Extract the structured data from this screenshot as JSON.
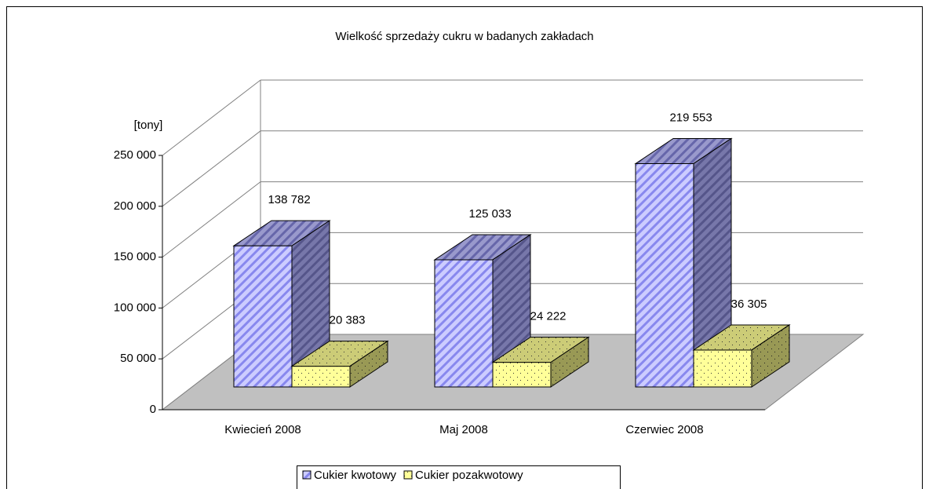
{
  "chart_data": {
    "type": "bar3d",
    "title": "Wielkość sprzedaży cukru w badanych zakładach",
    "y_label": "[tony]",
    "categories": [
      "Kwiecień 2008",
      "Maj 2008",
      "Czerwiec 2008"
    ],
    "series": [
      {
        "name": "Cukier kwotowy",
        "color": "#9999ff",
        "values": [
          138782,
          125033,
          219553
        ],
        "value_labels": [
          "138 782",
          "125 033",
          "219 553"
        ]
      },
      {
        "name": "Cukier pozakwotowy",
        "color": "#ffff99",
        "values": [
          20383,
          24222,
          36305
        ],
        "value_labels": [
          "20 383",
          "24 222",
          "36 305"
        ]
      }
    ],
    "ylim": [
      0,
      250000
    ],
    "yticks": [
      0,
      {
        "value": 50000,
        "label": "50 000"
      },
      {
        "value": 100000,
        "label": "100 000"
      },
      {
        "value": 150000,
        "label": "150 000"
      },
      {
        "value": 200000,
        "label": "200 000"
      },
      {
        "value": 250000,
        "label": "250 000"
      }
    ],
    "grid": true,
    "legend": "bottom"
  }
}
